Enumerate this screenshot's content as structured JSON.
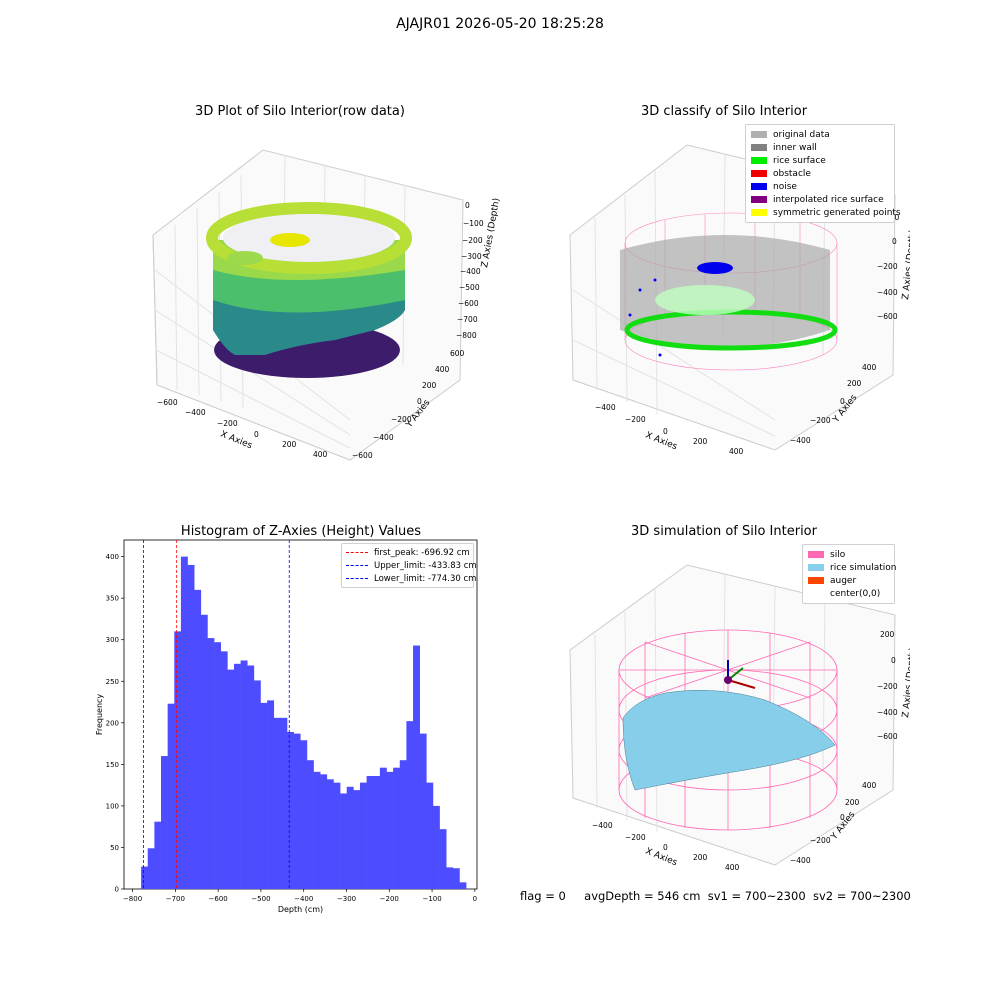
{
  "suptitle": "AJAJR01 2026-05-20 18:25:28",
  "panels": {
    "raw": {
      "title": "3D Plot of Silo Interior(row data)",
      "xlabel": "X Axies",
      "ylabel": "Y Axies",
      "zlabel": "Z Axies (Depth)",
      "xticks": [
        "−600",
        "−400",
        "−200",
        "0",
        "200",
        "400"
      ],
      "yticks": [
        "−600",
        "−400",
        "−200",
        "0",
        "200",
        "400",
        "600"
      ],
      "zticks": [
        "0",
        "−100",
        "−200",
        "−300",
        "−400",
        "−500",
        "−600",
        "−700",
        "−800"
      ]
    },
    "classify": {
      "title": "3D classify of Silo Interior",
      "xlabel": "X Axies",
      "ylabel": "Y Axies",
      "zlabel": "Z Axies (Depth)",
      "xticks": [
        "−400",
        "−200",
        "0",
        "200",
        "400"
      ],
      "yticks": [
        "−400",
        "−200",
        "0",
        "200",
        "400"
      ],
      "zticks": [
        "200",
        "0",
        "−200",
        "−400",
        "−600"
      ],
      "legend": [
        {
          "label": "original data",
          "color": "#b0b0b0"
        },
        {
          "label": "inner wall",
          "color": "#808080"
        },
        {
          "label": "rice surface",
          "color": "#00ee00"
        },
        {
          "label": "obstacle",
          "color": "#ee0000"
        },
        {
          "label": "noise",
          "color": "#0000ee"
        },
        {
          "label": "interpolated rice surface",
          "color": "#800080"
        },
        {
          "label": "symmetric generated points",
          "color": "#ffff00"
        }
      ]
    },
    "simulation": {
      "title": "3D simulation of Silo Interior",
      "xlabel": "X Axies",
      "ylabel": "Y Axies",
      "zlabel": "Z Axies (Depth)",
      "xticks": [
        "−400",
        "−200",
        "0",
        "200",
        "400"
      ],
      "yticks": [
        "−400",
        "−200",
        "0",
        "200",
        "400"
      ],
      "zticks": [
        "200",
        "0",
        "−200",
        "−400",
        "−600"
      ],
      "legend": [
        {
          "label": "silo",
          "color": "#ff69b4"
        },
        {
          "label": "rice simulation",
          "color": "#87ceeb"
        },
        {
          "label": "auger",
          "color": "#ff4500"
        },
        {
          "label": "center(0,0)",
          "color": "#ffffff"
        }
      ]
    }
  },
  "status": {
    "flag": "flag = 0",
    "avg": "avgDepth = 546 cm",
    "sv1": "sv1 = 700~2300",
    "sv2": "sv2 = 700~2300"
  },
  "chart_data": [
    {
      "type": "bar",
      "title": "Histogram of Z-Axies (Height) Values",
      "xlabel": "Depth (cm)",
      "ylabel": "Frequency",
      "xlim": [
        -820,
        5
      ],
      "ylim": [
        0,
        420
      ],
      "xticks": [
        -800,
        -700,
        -600,
        -500,
        -400,
        -300,
        -200,
        -100,
        0
      ],
      "yticks": [
        0,
        50,
        100,
        150,
        200,
        250,
        300,
        350,
        400
      ],
      "bin_start": -780,
      "bin_width": 15.5,
      "color": "#4d4dff",
      "values": [
        27,
        49,
        81,
        160,
        223,
        310,
        400,
        390,
        360,
        330,
        302,
        297,
        286,
        264,
        271,
        275,
        269,
        251,
        224,
        227,
        206,
        206,
        189,
        187,
        179,
        155,
        141,
        138,
        132,
        128,
        115,
        123,
        119,
        128,
        136,
        136,
        146,
        141,
        146,
        155,
        202,
        293,
        187,
        128,
        100,
        72,
        26,
        25,
        8
      ],
      "legend_loc": "upper right",
      "vlines": [
        {
          "label": "first_peak: -696.92 cm",
          "x": -696.92,
          "color": "#ff0000"
        },
        {
          "label": "Upper_limit: -433.83 cm",
          "x": -433.83,
          "color": "#0000ff"
        },
        {
          "label": "Lower_limit: -774.30 cm",
          "x": -774.3,
          "color": "#0000ff"
        }
      ]
    }
  ]
}
